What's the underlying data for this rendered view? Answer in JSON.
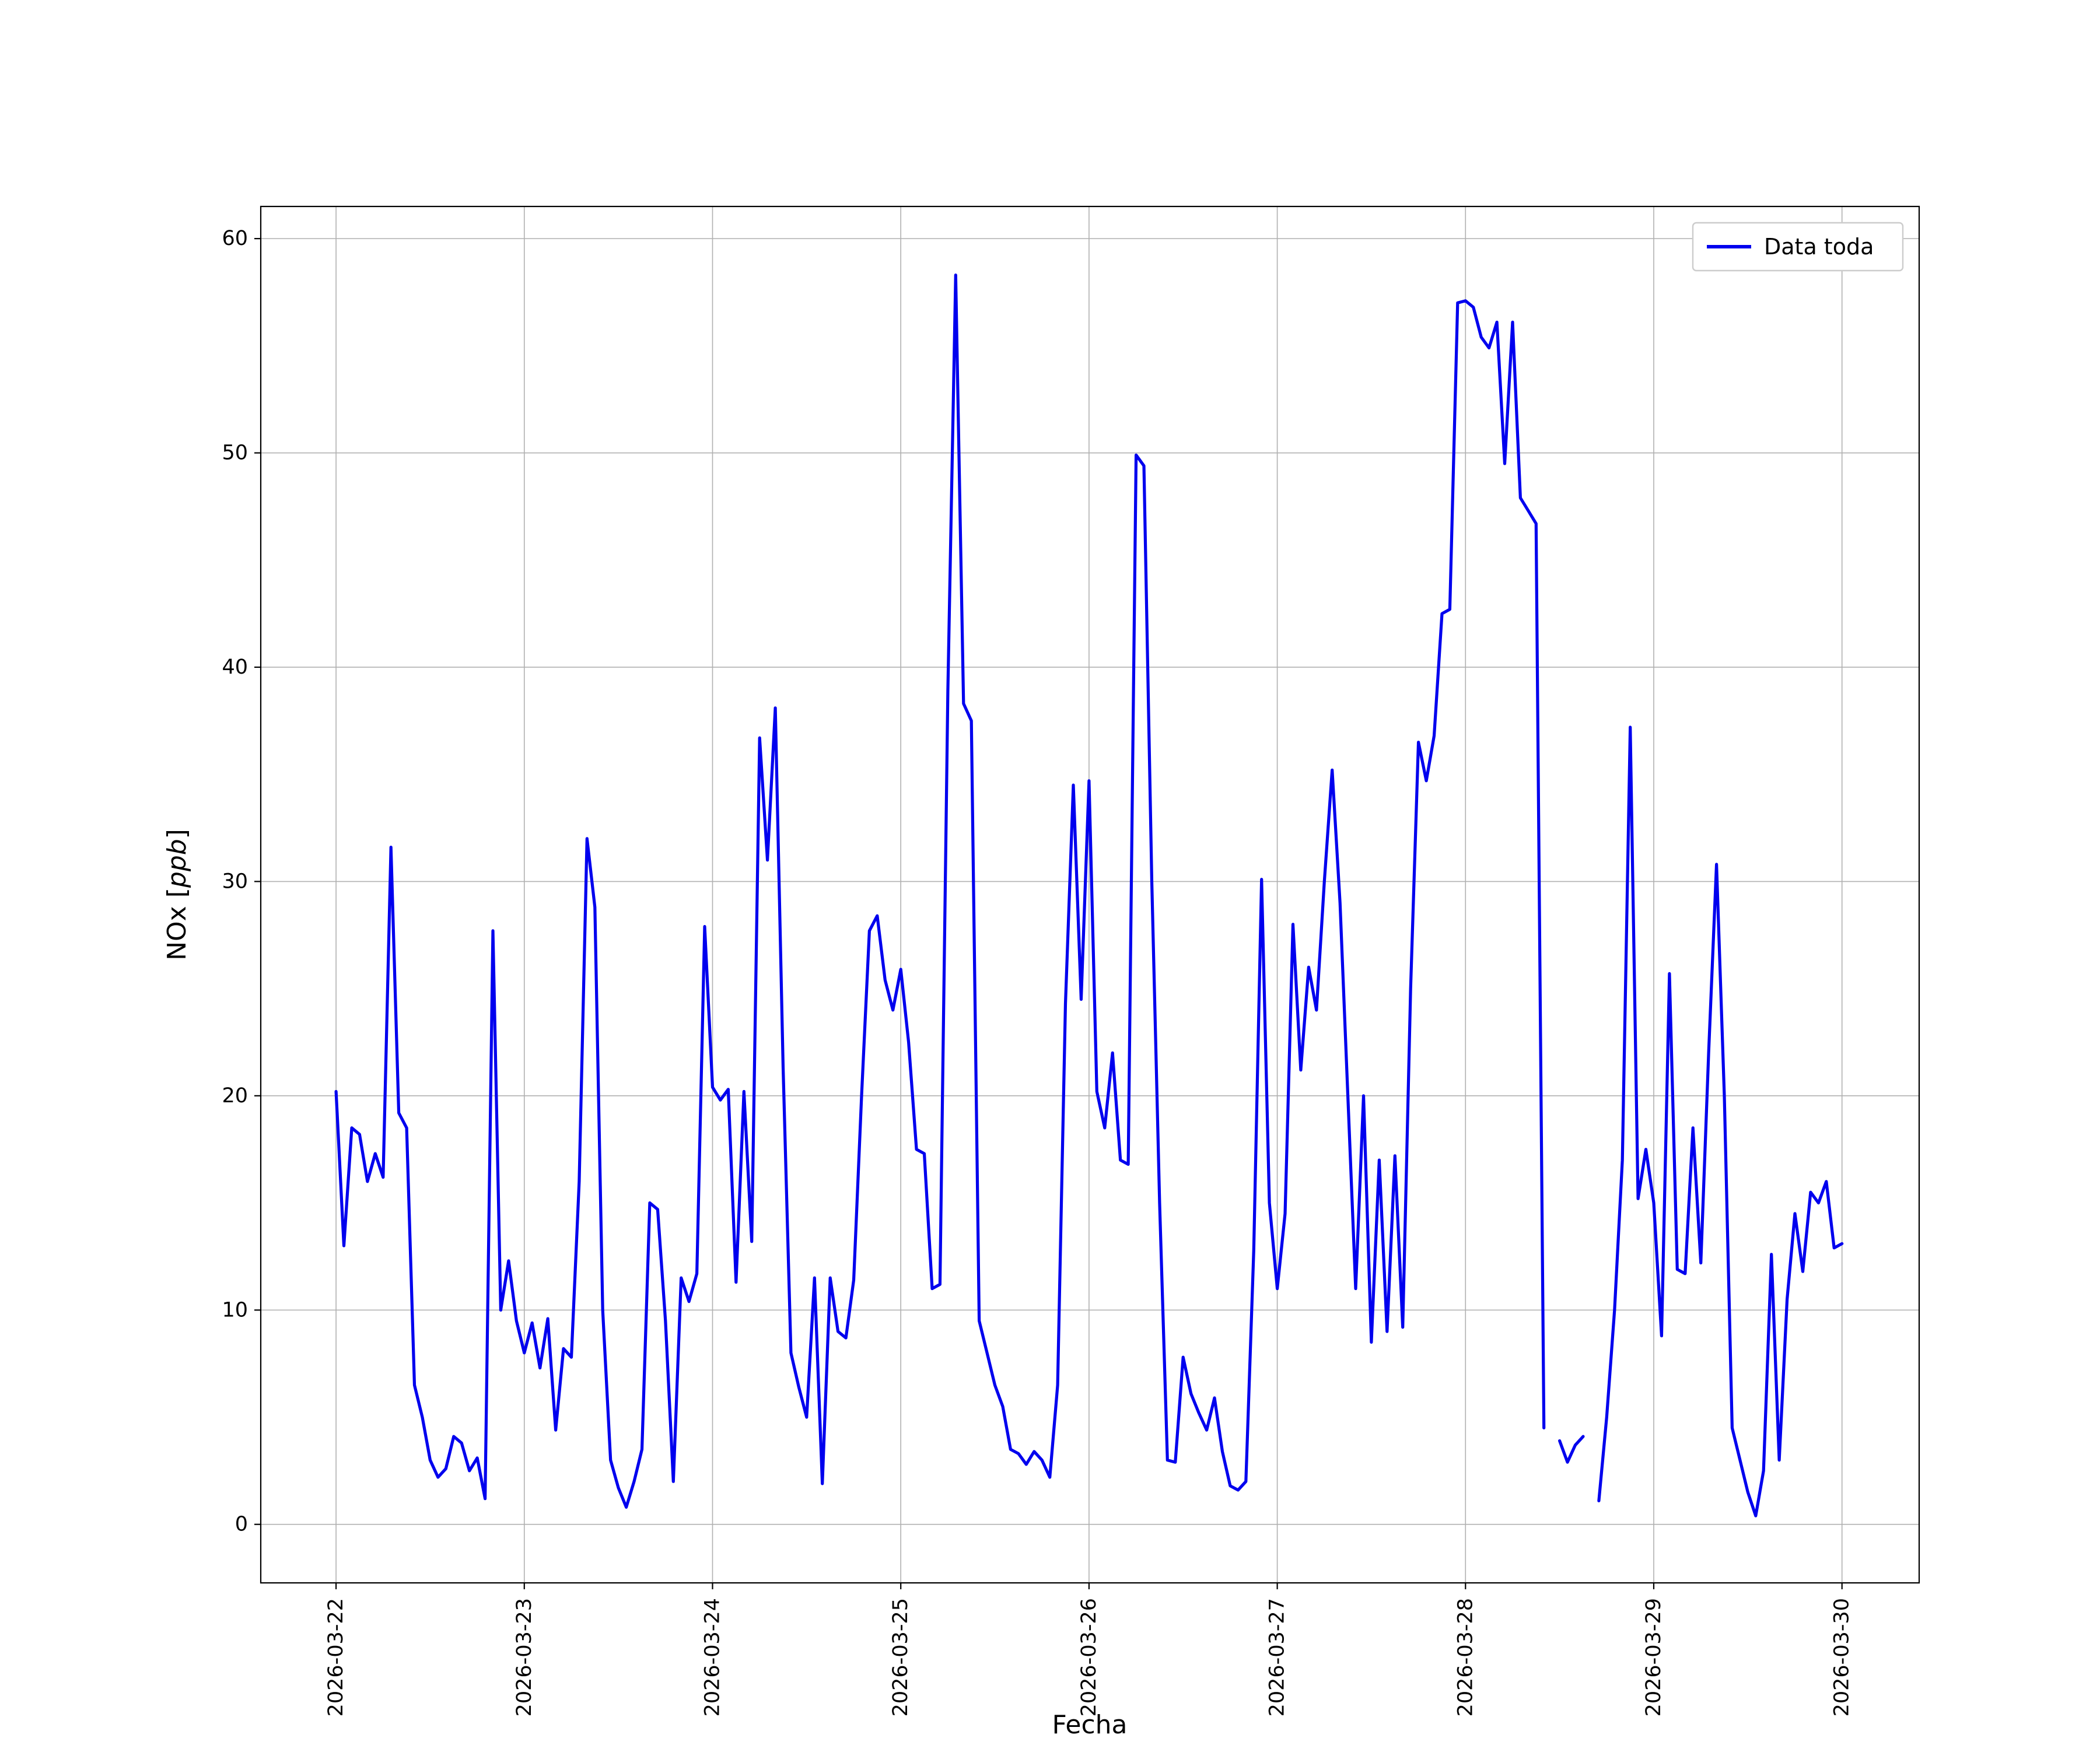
{
  "figure": {
    "background": "#ffffff",
    "spine_color": "#000000",
    "grid_color": "#b0b0b0",
    "legend_border_color": "#cccccc",
    "accent_line_color": "#0000EE"
  },
  "chart_data": {
    "type": "line",
    "title": "",
    "xlabel": "Fecha",
    "ylabel": "NOx [ppb]",
    "ylabel_parts": {
      "prefix": "NOx [",
      "math": "ppb",
      "suffix": "]"
    },
    "grid": true,
    "legend": [
      "Data toda"
    ],
    "legend_position": "upper right",
    "x_tick_labels": [
      "2026-03-22",
      "2026-03-23",
      "2026-03-24",
      "2026-03-25",
      "2026-03-26",
      "2026-03-27",
      "2026-03-28",
      "2026-03-29",
      "2026-03-30"
    ],
    "y_ticks": [
      0,
      10,
      20,
      30,
      40,
      50,
      60
    ],
    "xlim": [
      -0.4,
      8.41
    ],
    "ylim": [
      -2.73,
      61.5
    ],
    "points_per_day": 24,
    "x_start_label": "2026-03-22",
    "x_interval_hours": 1,
    "series": [
      {
        "name": "Data toda",
        "color": "#0000EE",
        "values": [
          20.2,
          13.0,
          18.5,
          18.2,
          16.0,
          17.3,
          16.2,
          31.6,
          19.2,
          18.5,
          6.5,
          5.0,
          3.0,
          2.2,
          2.6,
          4.1,
          3.8,
          2.5,
          3.1,
          1.2,
          27.7,
          10.0,
          12.3,
          9.5,
          8.0,
          9.4,
          7.3,
          9.6,
          4.4,
          8.2,
          7.8,
          16.0,
          32.0,
          28.8,
          10.0,
          3.0,
          1.7,
          0.8,
          2.0,
          3.5,
          15.0,
          14.7,
          9.5,
          2.0,
          11.5,
          10.4,
          11.7,
          27.9,
          20.4,
          19.8,
          20.3,
          11.3,
          20.2,
          13.2,
          36.7,
          31.0,
          38.1,
          21.3,
          8.0,
          6.4,
          5.0,
          11.5,
          1.9,
          11.5,
          9.0,
          8.7,
          11.4,
          20.0,
          27.7,
          28.4,
          25.4,
          24.0,
          25.9,
          22.5,
          17.5,
          17.3,
          11.0,
          11.2,
          38.9,
          58.3,
          38.3,
          37.5,
          9.5,
          8.0,
          6.5,
          5.5,
          3.5,
          3.3,
          2.8,
          3.4,
          3.0,
          2.2,
          6.5,
          24.3,
          34.5,
          24.5,
          34.7,
          20.2,
          18.5,
          22.0,
          17.0,
          16.8,
          49.9,
          49.4,
          30.0,
          15.0,
          3.0,
          2.9,
          7.8,
          6.1,
          5.2,
          4.4,
          5.9,
          3.4,
          1.8,
          1.6,
          2.0,
          12.8,
          30.1,
          15.0,
          11.0,
          14.5,
          28.0,
          21.2,
          26.0,
          24.0,
          30.0,
          35.2,
          29.0,
          20.0,
          11.0,
          20.0,
          8.5,
          17.0,
          9.0,
          17.2,
          9.2,
          25.0,
          36.5,
          34.7,
          36.8,
          42.5,
          42.7,
          57.0,
          57.1,
          56.8,
          55.4,
          54.9,
          56.1,
          49.5,
          56.1,
          47.9,
          47.3,
          46.7,
          4.5,
          null,
          3.9,
          2.9,
          3.7,
          4.1,
          null,
          1.1,
          5.0,
          10.0,
          17.0,
          37.2,
          15.2,
          17.5,
          15.0,
          8.8,
          25.7,
          11.9,
          11.7,
          18.5,
          12.2,
          22.0,
          30.8,
          20.0,
          4.5,
          3.0,
          1.5,
          0.4,
          2.5,
          12.6,
          3.0,
          10.5,
          14.5,
          11.8,
          15.5,
          15.0,
          16.0,
          12.9,
          13.1
        ]
      }
    ]
  }
}
